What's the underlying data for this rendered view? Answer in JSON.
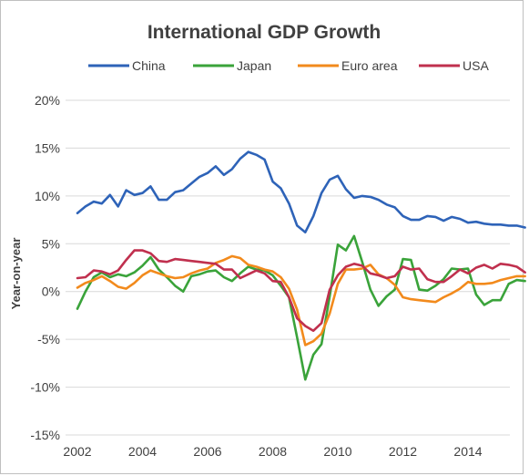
{
  "chart_data": {
    "type": "line",
    "title": "International GDP Growth",
    "ylabel": "Year-on-year",
    "xlabel": "",
    "ylim": [
      -15,
      20
    ],
    "xlim": [
      2002,
      2015.75
    ],
    "y_ticks": [
      "20%",
      "15%",
      "10%",
      "5%",
      "0%",
      "-5%",
      "-10%",
      "-15%"
    ],
    "y_tick_values": [
      20,
      15,
      10,
      5,
      0,
      -5,
      -10,
      -15
    ],
    "x_ticks": [
      "2002",
      "2004",
      "2006",
      "2008",
      "2010",
      "2012",
      "2014"
    ],
    "x_tick_values": [
      2002,
      2004,
      2006,
      2008,
      2010,
      2012,
      2014
    ],
    "grid": "horizontal",
    "legend_position": "top",
    "series": [
      {
        "name": "China",
        "color": "#2e63b8",
        "points": [
          [
            2002,
            8.2
          ],
          [
            2002.25,
            8.9
          ],
          [
            2002.5,
            9.4
          ],
          [
            2002.75,
            9.2
          ],
          [
            2003,
            10.1
          ],
          [
            2003.25,
            8.9
          ],
          [
            2003.5,
            10.6
          ],
          [
            2003.75,
            10.1
          ],
          [
            2004,
            10.3
          ],
          [
            2004.25,
            11.0
          ],
          [
            2004.5,
            9.6
          ],
          [
            2004.75,
            9.6
          ],
          [
            2005,
            10.4
          ],
          [
            2005.25,
            10.6
          ],
          [
            2005.5,
            11.3
          ],
          [
            2005.75,
            12.0
          ],
          [
            2006,
            12.4
          ],
          [
            2006.25,
            13.1
          ],
          [
            2006.5,
            12.2
          ],
          [
            2006.75,
            12.8
          ],
          [
            2007,
            13.9
          ],
          [
            2007.25,
            14.6
          ],
          [
            2007.5,
            14.3
          ],
          [
            2007.75,
            13.8
          ],
          [
            2008,
            11.5
          ],
          [
            2008.25,
            10.8
          ],
          [
            2008.5,
            9.2
          ],
          [
            2008.75,
            6.9
          ],
          [
            2009,
            6.2
          ],
          [
            2009.25,
            7.9
          ],
          [
            2009.5,
            10.3
          ],
          [
            2009.75,
            11.7
          ],
          [
            2010,
            12.1
          ],
          [
            2010.25,
            10.7
          ],
          [
            2010.5,
            9.8
          ],
          [
            2010.75,
            10.0
          ],
          [
            2011,
            9.9
          ],
          [
            2011.25,
            9.6
          ],
          [
            2011.5,
            9.1
          ],
          [
            2011.75,
            8.8
          ],
          [
            2012,
            7.9
          ],
          [
            2012.25,
            7.5
          ],
          [
            2012.5,
            7.5
          ],
          [
            2012.75,
            7.9
          ],
          [
            2013,
            7.8
          ],
          [
            2013.25,
            7.4
          ],
          [
            2013.5,
            7.8
          ],
          [
            2013.75,
            7.6
          ],
          [
            2014,
            7.2
          ],
          [
            2014.25,
            7.3
          ],
          [
            2014.5,
            7.1
          ],
          [
            2014.75,
            7.0
          ],
          [
            2015,
            7.0
          ],
          [
            2015.25,
            6.9
          ],
          [
            2015.5,
            6.9
          ],
          [
            2015.75,
            6.7
          ]
        ]
      },
      {
        "name": "Japan",
        "color": "#3aa33a",
        "points": [
          [
            2002,
            -1.8
          ],
          [
            2002.25,
            0.0
          ],
          [
            2002.5,
            1.5
          ],
          [
            2002.75,
            2.0
          ],
          [
            2003,
            1.5
          ],
          [
            2003.25,
            1.8
          ],
          [
            2003.5,
            1.6
          ],
          [
            2003.75,
            2.0
          ],
          [
            2004,
            2.7
          ],
          [
            2004.25,
            3.6
          ],
          [
            2004.5,
            2.3
          ],
          [
            2004.75,
            1.5
          ],
          [
            2005,
            0.6
          ],
          [
            2005.25,
            0.0
          ],
          [
            2005.5,
            1.6
          ],
          [
            2005.75,
            1.8
          ],
          [
            2006,
            2.1
          ],
          [
            2006.25,
            2.2
          ],
          [
            2006.5,
            1.5
          ],
          [
            2006.75,
            1.1
          ],
          [
            2007,
            1.9
          ],
          [
            2007.25,
            2.6
          ],
          [
            2007.5,
            2.3
          ],
          [
            2007.75,
            2.2
          ],
          [
            2008,
            1.7
          ],
          [
            2008.25,
            0.6
          ],
          [
            2008.5,
            -0.6
          ],
          [
            2008.75,
            -4.8
          ],
          [
            2009,
            -9.2
          ],
          [
            2009.25,
            -6.6
          ],
          [
            2009.5,
            -5.5
          ],
          [
            2009.75,
            -0.5
          ],
          [
            2010,
            4.9
          ],
          [
            2010.25,
            4.3
          ],
          [
            2010.5,
            5.8
          ],
          [
            2010.75,
            3.1
          ],
          [
            2011,
            0.2
          ],
          [
            2011.25,
            -1.5
          ],
          [
            2011.5,
            -0.5
          ],
          [
            2011.75,
            0.2
          ],
          [
            2012,
            3.4
          ],
          [
            2012.25,
            3.3
          ],
          [
            2012.5,
            0.2
          ],
          [
            2012.75,
            0.1
          ],
          [
            2013,
            0.6
          ],
          [
            2013.25,
            1.3
          ],
          [
            2013.5,
            2.4
          ],
          [
            2013.75,
            2.3
          ],
          [
            2014,
            2.4
          ],
          [
            2014.25,
            -0.3
          ],
          [
            2014.5,
            -1.4
          ],
          [
            2014.75,
            -0.9
          ],
          [
            2015,
            -0.9
          ],
          [
            2015.25,
            0.8
          ],
          [
            2015.5,
            1.2
          ],
          [
            2015.75,
            1.1
          ]
        ]
      },
      {
        "name": "Euro area",
        "color": "#f28a1c",
        "points": [
          [
            2002,
            0.4
          ],
          [
            2002.25,
            0.9
          ],
          [
            2002.5,
            1.2
          ],
          [
            2002.75,
            1.6
          ],
          [
            2003,
            1.1
          ],
          [
            2003.25,
            0.5
          ],
          [
            2003.5,
            0.3
          ],
          [
            2003.75,
            0.9
          ],
          [
            2004,
            1.7
          ],
          [
            2004.25,
            2.2
          ],
          [
            2004.5,
            1.9
          ],
          [
            2004.75,
            1.6
          ],
          [
            2005,
            1.4
          ],
          [
            2005.25,
            1.5
          ],
          [
            2005.5,
            1.9
          ],
          [
            2005.75,
            2.2
          ],
          [
            2006,
            2.4
          ],
          [
            2006.25,
            3.0
          ],
          [
            2006.5,
            3.3
          ],
          [
            2006.75,
            3.7
          ],
          [
            2007,
            3.5
          ],
          [
            2007.25,
            2.8
          ],
          [
            2007.5,
            2.6
          ],
          [
            2007.75,
            2.3
          ],
          [
            2008,
            2.1
          ],
          [
            2008.25,
            1.5
          ],
          [
            2008.5,
            0.3
          ],
          [
            2008.75,
            -1.9
          ],
          [
            2009,
            -5.6
          ],
          [
            2009.25,
            -5.2
          ],
          [
            2009.5,
            -4.4
          ],
          [
            2009.75,
            -2.3
          ],
          [
            2010,
            0.8
          ],
          [
            2010.25,
            2.3
          ],
          [
            2010.5,
            2.3
          ],
          [
            2010.75,
            2.4
          ],
          [
            2011,
            2.8
          ],
          [
            2011.25,
            1.8
          ],
          [
            2011.5,
            1.4
          ],
          [
            2011.75,
            0.7
          ],
          [
            2012,
            -0.6
          ],
          [
            2012.25,
            -0.8
          ],
          [
            2012.5,
            -0.9
          ],
          [
            2012.75,
            -1.0
          ],
          [
            2013,
            -1.1
          ],
          [
            2013.25,
            -0.6
          ],
          [
            2013.5,
            -0.2
          ],
          [
            2013.75,
            0.3
          ],
          [
            2014,
            1.0
          ],
          [
            2014.25,
            0.8
          ],
          [
            2014.5,
            0.8
          ],
          [
            2014.75,
            0.9
          ],
          [
            2015,
            1.2
          ],
          [
            2015.25,
            1.4
          ],
          [
            2015.5,
            1.6
          ],
          [
            2015.75,
            1.6
          ]
        ]
      },
      {
        "name": "USA",
        "color": "#c0304e",
        "points": [
          [
            2002,
            1.4
          ],
          [
            2002.25,
            1.5
          ],
          [
            2002.5,
            2.2
          ],
          [
            2002.75,
            2.1
          ],
          [
            2003,
            1.8
          ],
          [
            2003.25,
            2.2
          ],
          [
            2003.5,
            3.3
          ],
          [
            2003.75,
            4.3
          ],
          [
            2004,
            4.3
          ],
          [
            2004.25,
            4.0
          ],
          [
            2004.5,
            3.2
          ],
          [
            2004.75,
            3.1
          ],
          [
            2005,
            3.4
          ],
          [
            2005.25,
            3.3
          ],
          [
            2005.5,
            3.2
          ],
          [
            2005.75,
            3.1
          ],
          [
            2006,
            3.0
          ],
          [
            2006.25,
            2.9
          ],
          [
            2006.5,
            2.3
          ],
          [
            2006.75,
            2.3
          ],
          [
            2007,
            1.4
          ],
          [
            2007.25,
            1.8
          ],
          [
            2007.5,
            2.2
          ],
          [
            2007.75,
            1.9
          ],
          [
            2008,
            1.1
          ],
          [
            2008.25,
            1.0
          ],
          [
            2008.5,
            -0.6
          ],
          [
            2008.75,
            -2.8
          ],
          [
            2009,
            -3.6
          ],
          [
            2009.25,
            -4.1
          ],
          [
            2009.5,
            -3.3
          ],
          [
            2009.75,
            0.2
          ],
          [
            2010,
            1.7
          ],
          [
            2010.25,
            2.6
          ],
          [
            2010.5,
            2.9
          ],
          [
            2010.75,
            2.7
          ],
          [
            2011,
            1.9
          ],
          [
            2011.25,
            1.7
          ],
          [
            2011.5,
            1.4
          ],
          [
            2011.75,
            1.6
          ],
          [
            2012,
            2.6
          ],
          [
            2012.25,
            2.3
          ],
          [
            2012.5,
            2.4
          ],
          [
            2012.75,
            1.3
          ],
          [
            2013,
            1.0
          ],
          [
            2013.25,
            1.0
          ],
          [
            2013.5,
            1.6
          ],
          [
            2013.75,
            2.3
          ],
          [
            2014,
            1.9
          ],
          [
            2014.25,
            2.5
          ],
          [
            2014.5,
            2.8
          ],
          [
            2014.75,
            2.4
          ],
          [
            2015,
            2.9
          ],
          [
            2015.25,
            2.8
          ],
          [
            2015.5,
            2.6
          ],
          [
            2015.75,
            2.0
          ]
        ]
      }
    ]
  }
}
